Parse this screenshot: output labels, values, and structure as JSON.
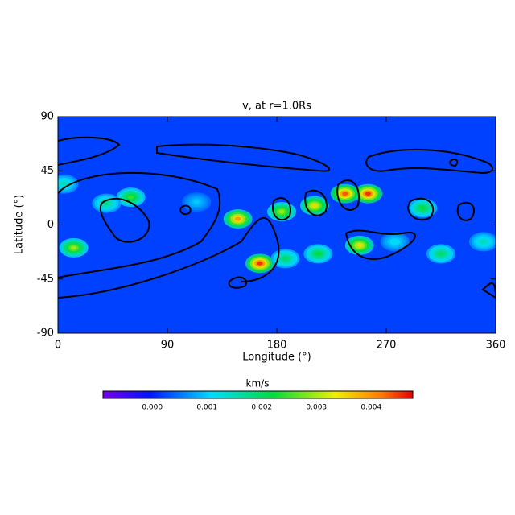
{
  "chart_data": {
    "type": "heatmap",
    "title": "v, at r=1.0Rs",
    "x_label": "Longitude (°)",
    "y_label": "Latitude (°)",
    "xlim": [
      0,
      360
    ],
    "ylim": [
      -90,
      90
    ],
    "xticks": [
      0,
      90,
      180,
      270,
      360
    ],
    "yticks": [
      -90,
      -45,
      0,
      45,
      90
    ],
    "colormap": "rainbow",
    "colorbar_label": "km/s",
    "clim": [
      -0.0009,
      0.00476
    ],
    "cticks": [
      {
        "value": 0,
        "label": "0.000"
      },
      {
        "value": 0.001,
        "label": "0.001"
      },
      {
        "value": 0.002,
        "label": "0.002"
      },
      {
        "value": 0.003,
        "label": "0.003"
      },
      {
        "value": 0.004,
        "label": "0.004"
      }
    ],
    "background_value": 0.0002,
    "hotspots": {
      "lon": [
        166,
        255,
        236,
        148,
        211,
        248,
        13,
        184,
        60,
        214,
        315,
        300,
        40,
        5,
        187,
        350,
        114,
        277
      ],
      "lat": [
        -32,
        26,
        26,
        5,
        16,
        -17,
        -19,
        11,
        23,
        -24,
        -24,
        14,
        18,
        34,
        -28,
        -14,
        19,
        -14
      ],
      "values": [
        0.0046,
        0.0046,
        0.0044,
        0.004,
        0.0035,
        0.0035,
        0.003,
        0.003,
        0.0025,
        0.0022,
        0.002,
        0.0022,
        0.0018,
        0.0015,
        0.002,
        0.0015,
        0.001,
        0.0012
      ]
    }
  }
}
